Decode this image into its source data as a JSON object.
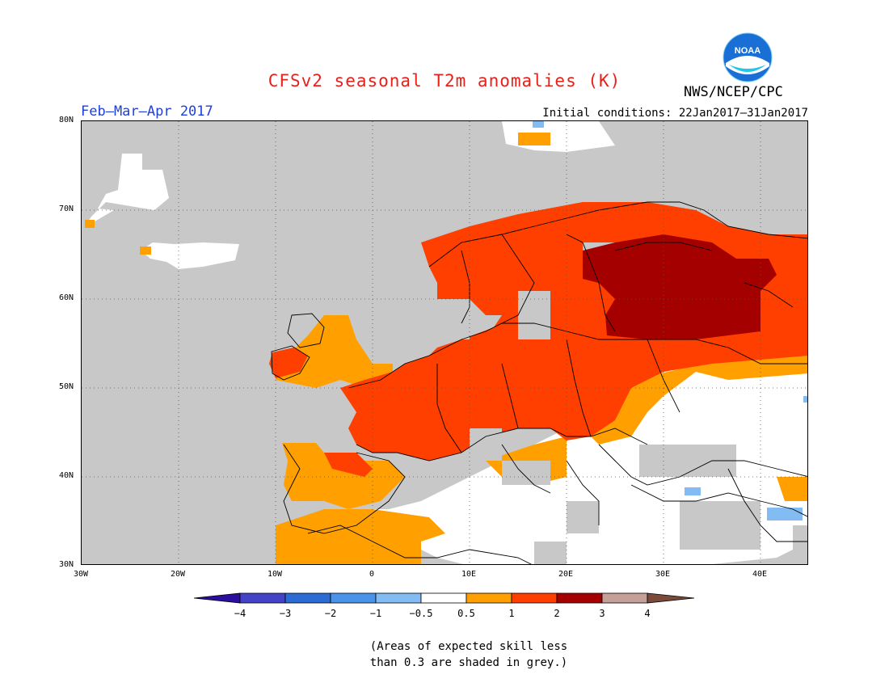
{
  "title": "CFSv2 seasonal T2m anomalies (K)",
  "season": "Feb–Mar–Apr 2017",
  "agency": "NWS/NCEP/CPC",
  "initial_conditions": "Initial conditions: 22Jan2017–31Jan2017",
  "logo": {
    "text": "NOAA",
    "icon": "noaa-logo-icon",
    "colors": [
      "#1a6fd6",
      "#ffffff"
    ]
  },
  "map": {
    "region": "Europe",
    "lat_range": [
      30,
      80
    ],
    "lon_range": [
      -30,
      45
    ],
    "lat_labels": [
      "80N",
      "70N",
      "60N",
      "50N",
      "40N",
      "30N"
    ],
    "lon_labels": [
      "30W",
      "20W",
      "10W",
      "0",
      "10E",
      "20E",
      "30E",
      "40E"
    ],
    "grid": "dotted",
    "ocean_color": "#c8c8c8"
  },
  "colorbar": {
    "boundaries": [
      "−4",
      "−3",
      "−2",
      "−1",
      "−0.5",
      "0.5",
      "1",
      "2",
      "3",
      "4"
    ],
    "colors": [
      "#2a0f9e",
      "#4343c8",
      "#2c6bd4",
      "#4b93ea",
      "#82bcf2",
      "#ffffff",
      "#ffa000",
      "#ff3f00",
      "#a50000",
      "#c4a098",
      "#7a4a3a"
    ]
  },
  "anomaly_regions": [
    {
      "name": "Northwest Russia / Finland",
      "category": "2 to 3",
      "color": "#a50000"
    },
    {
      "name": "Scandinavia, Central & Eastern Europe",
      "category": "1 to 2",
      "color": "#ff3f00"
    },
    {
      "name": "British Isles, Iberia, Turkey margins",
      "category": "0.5 to 1",
      "color": "#ffa000"
    },
    {
      "name": "Turkey / Black Sea / North Africa",
      "category": "-0.5 to 0.5",
      "color": "#ffffff"
    },
    {
      "name": "Eastern Turkey patches",
      "category": "-1 to -0.5",
      "color": "#82bcf2"
    }
  ],
  "note": {
    "line1": "(Areas of expected skill less",
    "line2": "than 0.3 are shaded in grey.)"
  }
}
